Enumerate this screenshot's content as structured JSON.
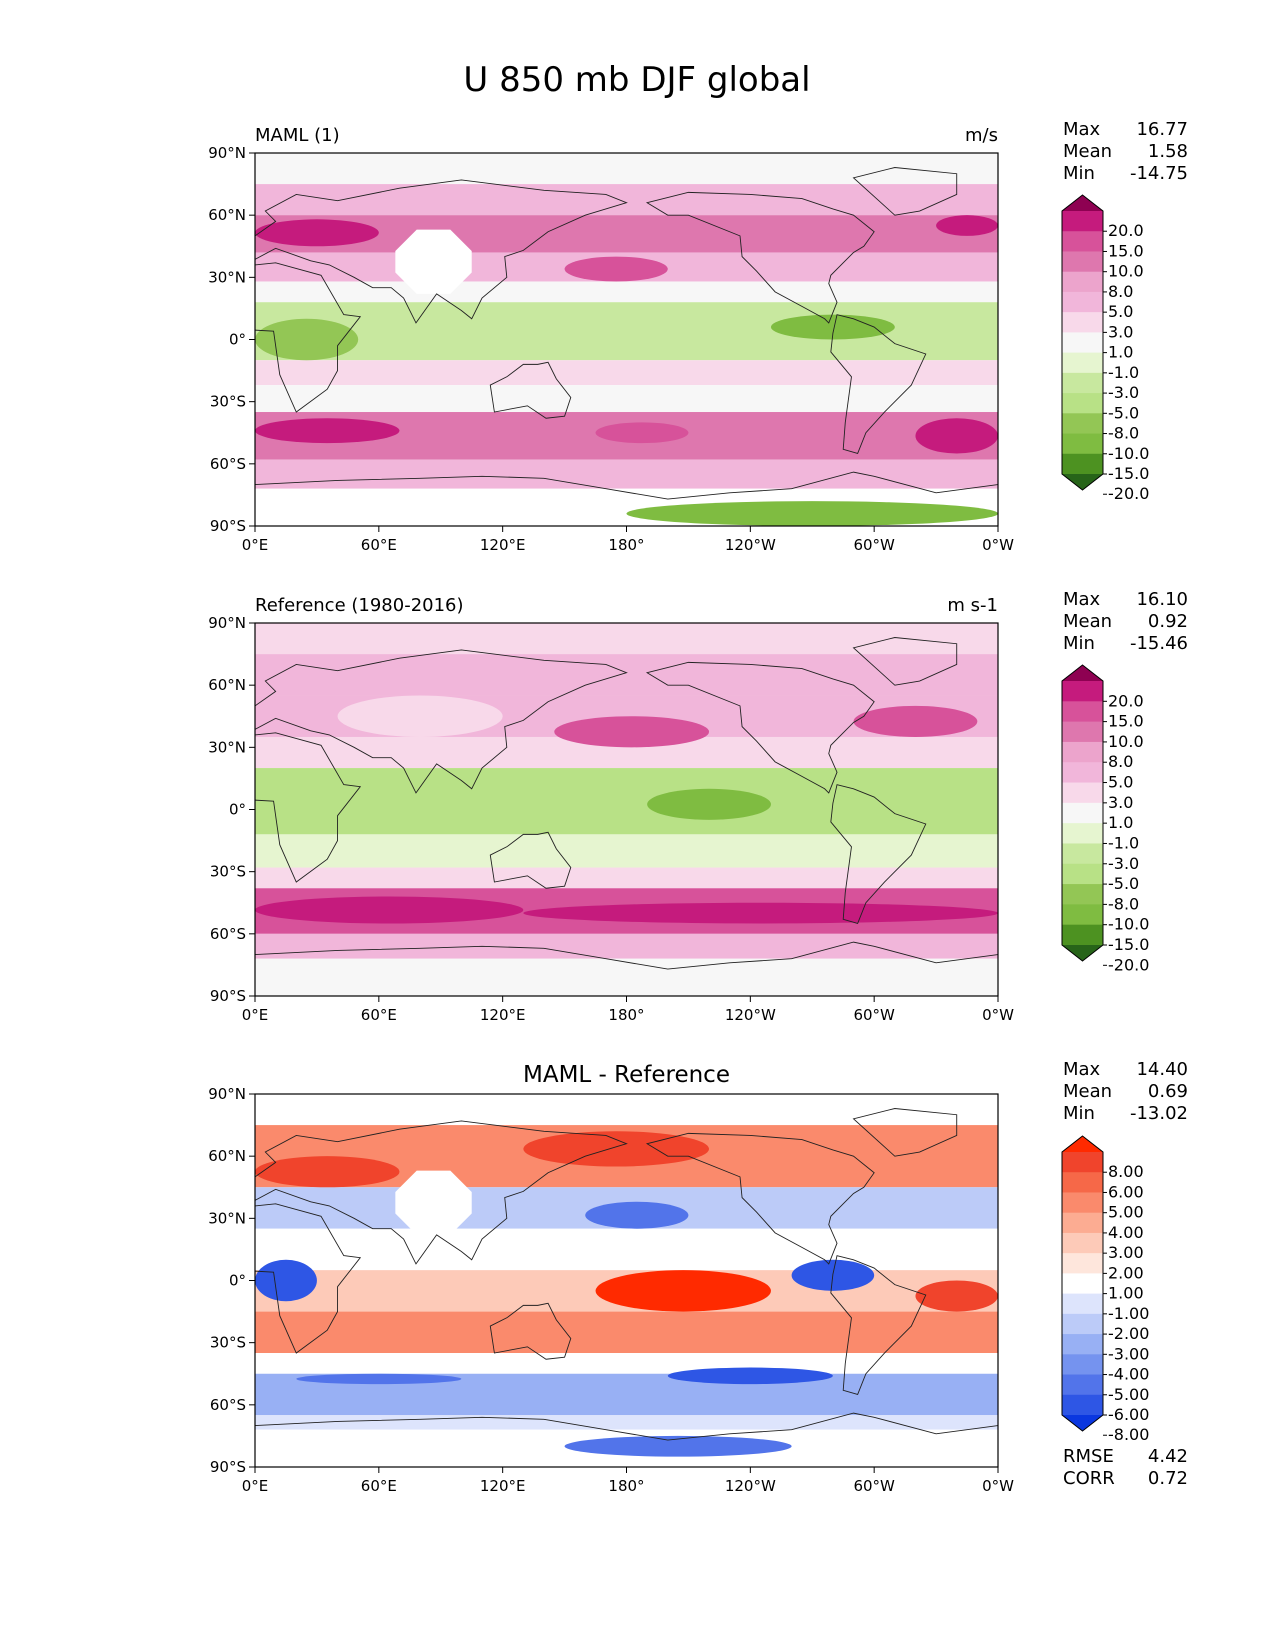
{
  "figure": {
    "title": "U 850 mb DJF global"
  },
  "chart_data": [
    {
      "type": "heatmap",
      "panel_id": "model",
      "left_title": "MAML (1)",
      "center_title": "",
      "units": "m/s",
      "stats": [
        {
          "label": "Max",
          "value": "16.77"
        },
        {
          "label": "Mean",
          "value": "1.58"
        },
        {
          "label": "Min",
          "value": "-14.75"
        }
      ],
      "colorbar": {
        "labels": [
          "20.0",
          "15.0",
          "10.0",
          "8.0",
          "5.0",
          "3.0",
          "1.0",
          "-1.0",
          "-3.0",
          "-5.0",
          "-8.0",
          "-10.0",
          "-15.0",
          "-20.0"
        ],
        "colors": [
          "#8e0152",
          "#c51b7d",
          "#d7529a",
          "#de77ae",
          "#eca4cc",
          "#f1b6da",
          "#f8d9ea",
          "#f7f7f7",
          "#e6f5d0",
          "#c8e89f",
          "#b8e186",
          "#93c655",
          "#7fbc41",
          "#4d9221",
          "#276419"
        ]
      },
      "xticks": [
        "0°E",
        "60°E",
        "120°E",
        "180°",
        "120°W",
        "60°W",
        "0°W"
      ],
      "yticks": [
        "90°N",
        "60°N",
        "30°N",
        "0°",
        "30°S",
        "60°S",
        "90°S"
      ],
      "xlim": [
        0,
        360
      ],
      "ylim": [
        -90,
        90
      ],
      "bands": [
        {
          "lat": [
            75,
            90
          ],
          "color": "#f7f7f7"
        },
        {
          "lat": [
            60,
            75
          ],
          "color": "#f1b6da"
        },
        {
          "lat": [
            42,
            60
          ],
          "color": "#de77ae"
        },
        {
          "lat": [
            28,
            42
          ],
          "color": "#f1b6da"
        },
        {
          "lat": [
            18,
            28
          ],
          "color": "#f7f7f7"
        },
        {
          "lat": [
            -10,
            18
          ],
          "color": "#c8e89f"
        },
        {
          "lat": [
            -22,
            -10
          ],
          "color": "#f8d9ea"
        },
        {
          "lat": [
            -35,
            -22
          ],
          "color": "#f7f7f7"
        },
        {
          "lat": [
            -58,
            -35
          ],
          "color": "#de77ae"
        },
        {
          "lat": [
            -72,
            -58
          ],
          "color": "#f1b6da"
        },
        {
          "lat": [
            -90,
            -72
          ],
          "color": "#ffffff"
        }
      ],
      "patches": [
        {
          "lon": [
            0,
            60
          ],
          "lat": [
            45,
            58
          ],
          "color": "#c51b7d"
        },
        {
          "lon": [
            150,
            200
          ],
          "lat": [
            28,
            40
          ],
          "color": "#d7529a"
        },
        {
          "lon": [
            250,
            310
          ],
          "lat": [
            0,
            12
          ],
          "color": "#7fbc41"
        },
        {
          "lon": [
            0,
            50
          ],
          "lat": [
            -10,
            10
          ],
          "color": "#93c655"
        },
        {
          "lon": [
            0,
            70
          ],
          "lat": [
            -50,
            -38
          ],
          "color": "#c51b7d"
        },
        {
          "lon": [
            165,
            210
          ],
          "lat": [
            -50,
            -40
          ],
          "color": "#d7529a"
        },
        {
          "lon": [
            320,
            360
          ],
          "lat": [
            -55,
            -38
          ],
          "color": "#c51b7d"
        },
        {
          "lon": [
            330,
            360
          ],
          "lat": [
            50,
            60
          ],
          "color": "#c51b7d"
        },
        {
          "lon": [
            180,
            360
          ],
          "lat": [
            -90,
            -78
          ],
          "color": "#7fbc41"
        }
      ],
      "missing": [
        {
          "lon": [
            68,
            105
          ],
          "lat": [
            22,
            53
          ]
        }
      ]
    },
    {
      "type": "heatmap",
      "panel_id": "reference",
      "left_title": "Reference (1980-2016)",
      "center_title": "",
      "units": "m s-1",
      "stats": [
        {
          "label": "Max",
          "value": "16.10"
        },
        {
          "label": "Mean",
          "value": "0.92"
        },
        {
          "label": "Min",
          "value": "-15.46"
        }
      ],
      "colorbar": {
        "labels": [
          "20.0",
          "15.0",
          "10.0",
          "8.0",
          "5.0",
          "3.0",
          "1.0",
          "-1.0",
          "-3.0",
          "-5.0",
          "-8.0",
          "-10.0",
          "-15.0",
          "-20.0"
        ],
        "colors": [
          "#8e0152",
          "#c51b7d",
          "#d7529a",
          "#de77ae",
          "#eca4cc",
          "#f1b6da",
          "#f8d9ea",
          "#f7f7f7",
          "#e6f5d0",
          "#c8e89f",
          "#b8e186",
          "#93c655",
          "#7fbc41",
          "#4d9221",
          "#276419"
        ]
      },
      "xticks": [
        "0°E",
        "60°E",
        "120°E",
        "180°",
        "120°W",
        "60°W",
        "0°W"
      ],
      "yticks": [
        "90°N",
        "60°N",
        "30°N",
        "0°",
        "30°S",
        "60°S",
        "90°S"
      ],
      "xlim": [
        0,
        360
      ],
      "ylim": [
        -90,
        90
      ],
      "bands": [
        {
          "lat": [
            75,
            90
          ],
          "color": "#f8d9ea"
        },
        {
          "lat": [
            55,
            75
          ],
          "color": "#f1b6da"
        },
        {
          "lat": [
            35,
            55
          ],
          "color": "#f1b6da"
        },
        {
          "lat": [
            20,
            35
          ],
          "color": "#f8d9ea"
        },
        {
          "lat": [
            -12,
            20
          ],
          "color": "#b8e186"
        },
        {
          "lat": [
            -28,
            -12
          ],
          "color": "#e6f5d0"
        },
        {
          "lat": [
            -38,
            -28
          ],
          "color": "#f8d9ea"
        },
        {
          "lat": [
            -60,
            -38
          ],
          "color": "#d7529a"
        },
        {
          "lat": [
            -72,
            -60
          ],
          "color": "#f1b6da"
        },
        {
          "lat": [
            -90,
            -72
          ],
          "color": "#f7f7f7"
        }
      ],
      "patches": [
        {
          "lon": [
            145,
            220
          ],
          "lat": [
            30,
            45
          ],
          "color": "#d7529a"
        },
        {
          "lon": [
            290,
            350
          ],
          "lat": [
            35,
            50
          ],
          "color": "#d7529a"
        },
        {
          "lon": [
            190,
            250
          ],
          "lat": [
            -5,
            10
          ],
          "color": "#7fbc41"
        },
        {
          "lon": [
            0,
            130
          ],
          "lat": [
            -55,
            -42
          ],
          "color": "#c51b7d"
        },
        {
          "lon": [
            130,
            360
          ],
          "lat": [
            -55,
            -45
          ],
          "color": "#c51b7d"
        },
        {
          "lon": [
            40,
            120
          ],
          "lat": [
            35,
            55
          ],
          "color": "#f8d9ea"
        }
      ],
      "missing": []
    },
    {
      "type": "heatmap",
      "panel_id": "difference",
      "left_title": "",
      "center_title": "MAML - Reference",
      "units": "",
      "stats": [
        {
          "label": "Max",
          "value": "14.40"
        },
        {
          "label": "Mean",
          "value": "0.69"
        },
        {
          "label": "Min",
          "value": "-13.02"
        }
      ],
      "stats_bottom": [
        {
          "label": "RMSE",
          "value": "4.42"
        },
        {
          "label": "CORR",
          "value": "0.72"
        }
      ],
      "colorbar": {
        "labels": [
          "8.00",
          "6.00",
          "5.00",
          "4.00",
          "3.00",
          "2.00",
          "1.00",
          "-1.00",
          "-2.00",
          "-3.00",
          "-4.00",
          "-5.00",
          "-6.00",
          "-8.00"
        ],
        "colors": [
          "#ff2a00",
          "#f0442c",
          "#f66848",
          "#fa8a6c",
          "#fcac92",
          "#fdcab8",
          "#fee6dc",
          "#ffffff",
          "#dde4fc",
          "#bccbf8",
          "#98b0f4",
          "#7593ef",
          "#5274ea",
          "#2e56e5",
          "#0a37e0"
        ]
      },
      "xticks": [
        "0°E",
        "60°E",
        "120°E",
        "180°",
        "120°W",
        "60°W",
        "0°W"
      ],
      "yticks": [
        "90°N",
        "60°N",
        "30°N",
        "0°",
        "30°S",
        "60°S",
        "90°S"
      ],
      "xlim": [
        0,
        360
      ],
      "ylim": [
        -90,
        90
      ],
      "bands": [
        {
          "lat": [
            75,
            90
          ],
          "color": "#ffffff"
        },
        {
          "lat": [
            45,
            75
          ],
          "color": "#fa8a6c"
        },
        {
          "lat": [
            25,
            45
          ],
          "color": "#bccbf8"
        },
        {
          "lat": [
            5,
            25
          ],
          "color": "#ffffff"
        },
        {
          "lat": [
            -15,
            5
          ],
          "color": "#fdcab8"
        },
        {
          "lat": [
            -35,
            -15
          ],
          "color": "#fa8a6c"
        },
        {
          "lat": [
            -45,
            -35
          ],
          "color": "#ffffff"
        },
        {
          "lat": [
            -65,
            -45
          ],
          "color": "#98b0f4"
        },
        {
          "lat": [
            -72,
            -65
          ],
          "color": "#dde4fc"
        },
        {
          "lat": [
            -90,
            -72
          ],
          "color": "#ffffff"
        }
      ],
      "patches": [
        {
          "lon": [
            0,
            70
          ],
          "lat": [
            45,
            60
          ],
          "color": "#f0442c"
        },
        {
          "lon": [
            130,
            220
          ],
          "lat": [
            55,
            72
          ],
          "color": "#f0442c"
        },
        {
          "lon": [
            160,
            210
          ],
          "lat": [
            25,
            38
          ],
          "color": "#5274ea"
        },
        {
          "lon": [
            165,
            250
          ],
          "lat": [
            -15,
            5
          ],
          "color": "#ff2a00"
        },
        {
          "lon": [
            0,
            30
          ],
          "lat": [
            -10,
            10
          ],
          "color": "#2e56e5"
        },
        {
          "lon": [
            260,
            300
          ],
          "lat": [
            -5,
            10
          ],
          "color": "#2e56e5"
        },
        {
          "lon": [
            20,
            100
          ],
          "lat": [
            -50,
            -45
          ],
          "color": "#5274ea"
        },
        {
          "lon": [
            200,
            280
          ],
          "lat": [
            -50,
            -42
          ],
          "color": "#2e56e5"
        },
        {
          "lon": [
            320,
            360
          ],
          "lat": [
            -15,
            0
          ],
          "color": "#f0442c"
        },
        {
          "lon": [
            150,
            260
          ],
          "lat": [
            -85,
            -75
          ],
          "color": "#5274ea"
        }
      ],
      "missing": [
        {
          "lon": [
            68,
            105
          ],
          "lat": [
            22,
            53
          ]
        }
      ]
    }
  ]
}
